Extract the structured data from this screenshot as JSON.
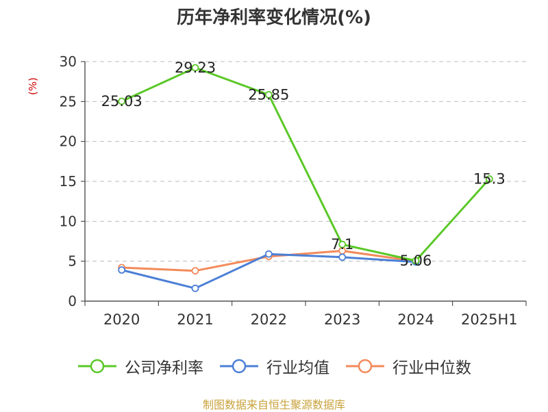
{
  "chart_data": {
    "type": "line",
    "title": "历年净利率变化情况(%)",
    "ylabel": "(%)",
    "xlabel": "",
    "categories": [
      "2020",
      "2021",
      "2022",
      "2023",
      "2024",
      "2025H1"
    ],
    "ylim": [
      0,
      30
    ],
    "yticks": [
      0,
      5,
      10,
      15,
      20,
      25,
      30
    ],
    "grid": true,
    "legend_position": "bottom",
    "series": [
      {
        "name": "公司净利率",
        "color": "#5ac827",
        "values": [
          25.03,
          29.23,
          25.85,
          7.1,
          5.06,
          15.3
        ],
        "labels": [
          "25.03",
          "29.23",
          "25.85",
          "7.1",
          "5.06",
          "15.3"
        ]
      },
      {
        "name": "行业均值",
        "color": "#4b7fd6",
        "values": [
          3.9,
          1.6,
          5.9,
          5.5,
          4.9,
          null
        ]
      },
      {
        "name": "行业中位数",
        "color": "#f38a5a",
        "values": [
          4.2,
          3.8,
          5.6,
          6.3,
          5.0,
          null
        ]
      }
    ]
  },
  "source": "制图数据来自恒生聚源数据库"
}
